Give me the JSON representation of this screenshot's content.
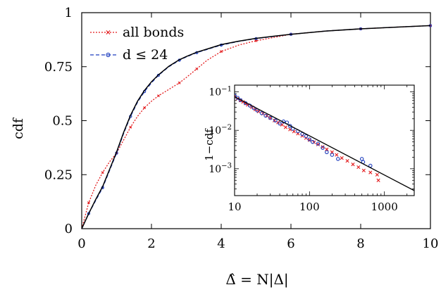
{
  "chart_data": [
    {
      "type": "line",
      "title": "",
      "xlabel": "Δ̂ = N|Δ|",
      "ylabel": "cdf",
      "xlim": [
        0,
        10
      ],
      "ylim": [
        0,
        1
      ],
      "x_ticks": [
        "0",
        "2",
        "4",
        "6",
        "8",
        "10"
      ],
      "y_ticks": [
        "0",
        "0.25",
        "0.5",
        "0.75",
        "1"
      ],
      "grid": false,
      "legend_position": "top-left",
      "series": [
        {
          "name": "all bonds",
          "color": "#e31a1c",
          "line_style": "dotted",
          "marker": "x",
          "x": [
            0,
            0.2,
            0.4,
            0.6,
            0.8,
            1.0,
            1.2,
            1.4,
            1.6,
            1.8,
            2.0,
            2.2,
            2.5,
            2.8,
            3.0,
            3.3,
            3.6,
            4.0,
            4.5,
            5.0,
            5.5,
            6.0,
            7.0,
            8.0,
            9.0,
            10.0
          ],
          "y": [
            0,
            0.12,
            0.2,
            0.26,
            0.31,
            0.35,
            0.41,
            0.47,
            0.52,
            0.56,
            0.59,
            0.615,
            0.645,
            0.675,
            0.7,
            0.74,
            0.78,
            0.82,
            0.85,
            0.87,
            0.885,
            0.9,
            0.915,
            0.925,
            0.933,
            0.94
          ]
        },
        {
          "name": "d ≤ 24",
          "color": "#1f3fbf",
          "line_style": "dashed",
          "marker": "o",
          "x": [
            0,
            0.2,
            0.4,
            0.6,
            0.8,
            1.0,
            1.2,
            1.4,
            1.6,
            1.8,
            2.0,
            2.2,
            2.5,
            2.8,
            3.0,
            3.3,
            3.6,
            4.0,
            4.5,
            5.0,
            5.5,
            6.0,
            7.0,
            8.0,
            9.0,
            10.0
          ],
          "y": [
            0,
            0.07,
            0.13,
            0.19,
            0.27,
            0.35,
            0.44,
            0.52,
            0.585,
            0.635,
            0.675,
            0.71,
            0.75,
            0.78,
            0.795,
            0.815,
            0.83,
            0.85,
            0.867,
            0.88,
            0.89,
            0.9,
            0.915,
            0.925,
            0.933,
            0.94
          ]
        },
        {
          "name": "",
          "color": "#000000",
          "line_style": "solid",
          "marker": "none",
          "x": [
            0,
            0.2,
            0.4,
            0.6,
            0.8,
            1.0,
            1.2,
            1.4,
            1.6,
            1.8,
            2.0,
            2.2,
            2.5,
            2.8,
            3.0,
            3.3,
            3.6,
            4.0,
            4.5,
            5.0,
            5.5,
            6.0,
            7.0,
            8.0,
            9.0,
            10.0
          ],
          "y": [
            0,
            0.07,
            0.135,
            0.195,
            0.275,
            0.355,
            0.445,
            0.525,
            0.59,
            0.64,
            0.68,
            0.712,
            0.752,
            0.782,
            0.797,
            0.817,
            0.832,
            0.852,
            0.868,
            0.881,
            0.891,
            0.9,
            0.915,
            0.925,
            0.933,
            0.94
          ]
        }
      ]
    },
    {
      "type": "scatter",
      "title": "",
      "xlabel": "",
      "ylabel": "1−cdf",
      "x_scale": "log",
      "y_scale": "log",
      "xlim": [
        10,
        2500
      ],
      "ylim": [
        0.0002,
        0.15
      ],
      "x_ticks": [
        "10",
        "100",
        "1000"
      ],
      "y_ticks": [
        "10^-3",
        "10^-2",
        "10^-1"
      ],
      "grid": false,
      "series": [
        {
          "name": "all bonds",
          "color": "#e31a1c",
          "marker": "x",
          "x": [
            10,
            11,
            12,
            13,
            14,
            15,
            17,
            19,
            21,
            24,
            27,
            30,
            34,
            38,
            43,
            48,
            55,
            62,
            70,
            80,
            90,
            100,
            115,
            130,
            150,
            170,
            200,
            230,
            270,
            320,
            380,
            450,
            530,
            650,
            800,
            830
          ],
          "y": [
            0.075,
            0.067,
            0.06,
            0.055,
            0.05,
            0.046,
            0.04,
            0.035,
            0.031,
            0.027,
            0.024,
            0.021,
            0.018,
            0.016,
            0.014,
            0.012,
            0.0105,
            0.0093,
            0.0082,
            0.0072,
            0.0063,
            0.0056,
            0.0049,
            0.0043,
            0.0037,
            0.0032,
            0.0027,
            0.0023,
            0.0019,
            0.0016,
            0.0013,
            0.0011,
            0.0009,
            0.0008,
            0.0007,
            0.0005
          ]
        },
        {
          "name": "d ≤ 24",
          "color": "#1f3fbf",
          "marker": "o",
          "x": [
            10,
            11,
            12,
            14,
            16,
            18,
            20,
            23,
            26,
            30,
            35,
            40,
            45,
            50,
            55,
            60,
            70,
            80,
            90,
            100,
            110,
            130,
            150,
            170,
            200,
            240,
            500,
            520,
            650
          ],
          "y": [
            0.08,
            0.07,
            0.061,
            0.051,
            0.044,
            0.038,
            0.033,
            0.028,
            0.024,
            0.021,
            0.018,
            0.015,
            0.017,
            0.016,
            0.013,
            0.011,
            0.0095,
            0.008,
            0.007,
            0.0058,
            0.005,
            0.0045,
            0.0035,
            0.0027,
            0.0023,
            0.0018,
            0.0018,
            0.0015,
            0.0012
          ]
        },
        {
          "name": "",
          "color": "#000000",
          "marker": "none",
          "x": [
            10,
            2500
          ],
          "y": [
            0.075,
            0.00027
          ]
        }
      ]
    }
  ]
}
